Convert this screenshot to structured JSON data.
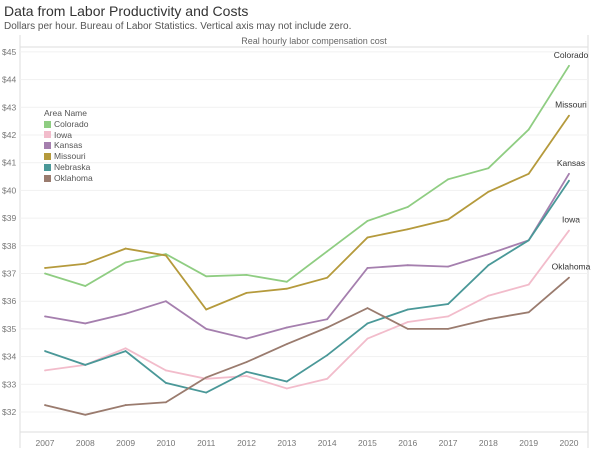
{
  "title": "Data from Labor Productivity and Costs",
  "subtitle": "Dollars per hour. Bureau of Labor Statistics. Vertical axis may not include zero.",
  "chart_data": {
    "type": "line",
    "title": "Real hourly labor compensation cost",
    "xlabel": "",
    "ylabel": "",
    "x": [
      2007,
      2008,
      2009,
      2010,
      2011,
      2012,
      2013,
      2014,
      2015,
      2016,
      2017,
      2018,
      2019,
      2020
    ],
    "ylim": [
      31.3,
      45.2
    ],
    "yticks": [
      "$32",
      "$33",
      "$34",
      "$35",
      "$36",
      "$37",
      "$38",
      "$39",
      "$40",
      "$41",
      "$42",
      "$43",
      "$44",
      "$45"
    ],
    "ytick_values": [
      32,
      33,
      34,
      35,
      36,
      37,
      38,
      39,
      40,
      41,
      42,
      43,
      44,
      45
    ],
    "grid": true,
    "legend_title": "Area Name",
    "legend_placement": "top-left",
    "series": [
      {
        "name": "Colorado",
        "color": "#8fcd82",
        "values": [
          37.0,
          36.55,
          37.4,
          37.7,
          36.9,
          36.95,
          36.7,
          37.8,
          38.9,
          39.4,
          40.4,
          40.8,
          42.2,
          44.5
        ]
      },
      {
        "name": "Iowa",
        "color": "#f2bccb",
        "values": [
          33.5,
          33.7,
          34.3,
          33.5,
          33.2,
          33.3,
          32.85,
          33.2,
          34.65,
          35.25,
          35.45,
          36.2,
          36.6,
          38.55
        ]
      },
      {
        "name": "Kansas",
        "color": "#a57fae",
        "values": [
          35.45,
          35.2,
          35.55,
          36.0,
          35.0,
          34.65,
          35.05,
          35.35,
          37.2,
          37.3,
          37.25,
          37.7,
          38.2,
          40.6
        ]
      },
      {
        "name": "Missouri",
        "color": "#b59a3c",
        "values": [
          37.2,
          37.35,
          37.9,
          37.65,
          35.7,
          36.3,
          36.45,
          36.85,
          38.3,
          38.6,
          38.95,
          39.95,
          40.6,
          42.7
        ]
      },
      {
        "name": "Nebraska",
        "color": "#4a9898",
        "values": [
          34.2,
          33.7,
          34.2,
          33.05,
          32.7,
          33.45,
          33.1,
          34.05,
          35.2,
          35.7,
          35.9,
          37.3,
          38.2,
          40.35
        ]
      },
      {
        "name": "Oklahoma",
        "color": "#9a7b6e",
        "values": [
          32.25,
          31.9,
          32.25,
          32.35,
          33.25,
          33.8,
          34.45,
          35.05,
          35.75,
          35.0,
          35.0,
          35.35,
          35.6,
          36.85
        ]
      }
    ]
  }
}
